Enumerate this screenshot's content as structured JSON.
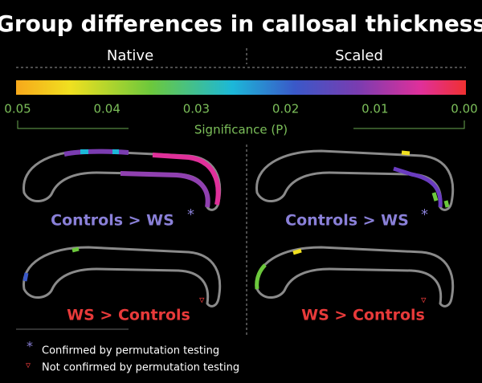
{
  "title": "Group differences in callosal thickness",
  "columns": [
    "Native",
    "Scaled"
  ],
  "colorbar": {
    "ticks": [
      "0.05",
      "0.04",
      "0.03",
      "0.02",
      "0.01",
      "0.00"
    ],
    "label": "Significance (P)"
  },
  "panels": [
    {
      "label": "Controls > WS",
      "symbol": "*"
    },
    {
      "label": "Controls > WS",
      "symbol": "*"
    },
    {
      "label": "WS > Controls",
      "symbol": "▿"
    },
    {
      "label": "WS > Controls",
      "symbol": "▿"
    }
  ],
  "legend": [
    {
      "symbol": "*",
      "text": "Confirmed by permutation testing"
    },
    {
      "symbol": "▿",
      "text": "Not confirmed by permutation testing"
    }
  ]
}
